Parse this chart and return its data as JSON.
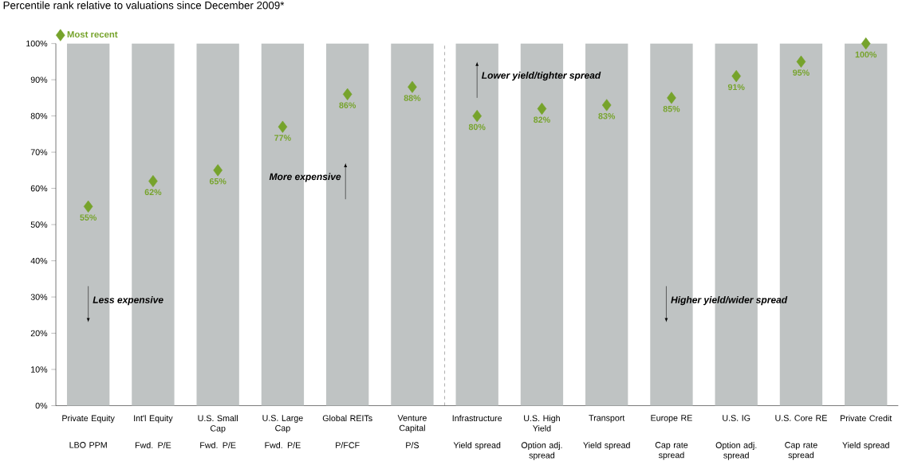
{
  "chart_data": {
    "type": "bar",
    "title": "Percentile rank relative to valuations since December 2009*",
    "categories": [
      "Private Equity",
      "Int'l Equity",
      "U.S. Small Cap",
      "U.S. Large Cap",
      "Global REITs",
      "Venture Capital",
      "Infrastructure",
      "U.S. High Yield",
      "Transport",
      "Europe RE",
      "U.S. IG",
      "U.S. Core RE",
      "Private Credit"
    ],
    "series": [
      {
        "color": "#bfc3c3",
        "values": [
          100,
          100,
          100,
          100,
          100,
          100,
          100,
          100,
          100,
          100,
          100,
          100,
          100
        ]
      },
      {
        "type": "scatter",
        "name": "Most recent",
        "color": "#76a32b",
        "marker": "diamond",
        "values": [
          55,
          62,
          65,
          77,
          86,
          88,
          80,
          82,
          83,
          85,
          91,
          95,
          100
        ],
        "value_labels": [
          "55%",
          "62%",
          "65%",
          "77%",
          "86%",
          "88%",
          "80%",
          "82%",
          "83%",
          "85%",
          "91%",
          "95%",
          "100%"
        ]
      }
    ],
    "ylim": [
      0,
      100
    ],
    "yticks": [
      {
        "value": 0,
        "label": "0%"
      },
      {
        "value": 10,
        "label": "10%"
      },
      {
        "value": 20,
        "label": "20%"
      },
      {
        "value": 30,
        "label": "30%"
      },
      {
        "value": 40,
        "label": "40%"
      },
      {
        "value": 50,
        "label": "50%"
      },
      {
        "value": 60,
        "label": "60%"
      },
      {
        "value": 70,
        "label": "70%"
      },
      {
        "value": 80,
        "label": "80%"
      },
      {
        "value": 90,
        "label": "90%"
      },
      {
        "value": 100,
        "label": "100%"
      }
    ],
    "legend": "top left",
    "annotations": [
      "LBO PPM",
      "Fwd. P/E",
      "Fwd. P/E",
      "Fwd. P/E",
      "P/FCF",
      "P/S",
      "Yield spread",
      "Option adj. spread",
      "Yield spread",
      "Cap rate spread",
      "Option adj. spread",
      "Cap rate spread",
      "Yield spread",
      "Less expensive",
      "More expensive",
      "Lower yield/tighter spread",
      "Higher yield/wider spread"
    ]
  }
}
